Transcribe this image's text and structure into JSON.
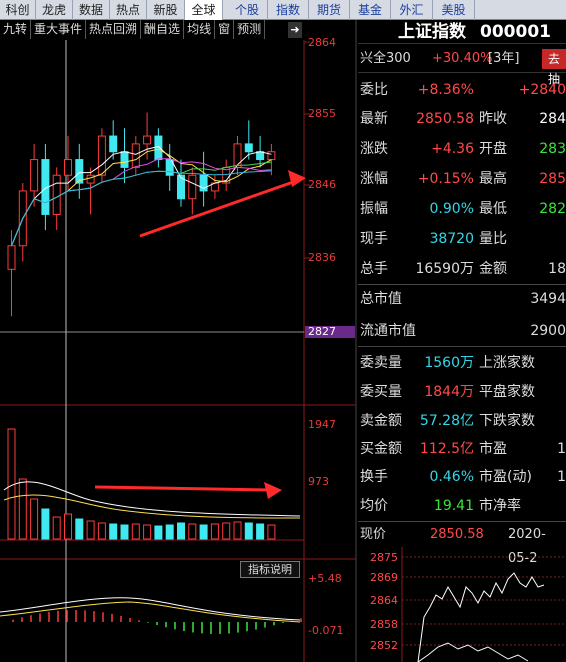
{
  "topnav": [
    "科创",
    "龙虎",
    "数据",
    "热点",
    "新股",
    "全球",
    "个股",
    "指数",
    "期货",
    "基金",
    "外汇",
    "美股"
  ],
  "toolbar": [
    "九转",
    "重大事件",
    "热点回溯",
    "酬自选",
    "均线",
    "窗",
    "预测"
  ],
  "kline": {
    "y_labels": [
      "2864",
      "2855",
      "2846",
      "2836",
      "2827"
    ],
    "ohlc": [
      [
        2835,
        2840,
        2829,
        2838
      ],
      [
        2838,
        2846,
        2836,
        2845
      ],
      [
        2845,
        2851,
        2843,
        2849
      ],
      [
        2849,
        2851,
        2840,
        2842
      ],
      [
        2842,
        2848,
        2840,
        2847
      ],
      [
        2847,
        2852,
        2845,
        2849
      ],
      [
        2849,
        2851,
        2844,
        2846
      ],
      [
        2846,
        2848,
        2842,
        2847
      ],
      [
        2847,
        2853,
        2846,
        2852
      ],
      [
        2852,
        2854,
        2849,
        2850
      ],
      [
        2850,
        2853,
        2846,
        2848
      ],
      [
        2848,
        2852,
        2847,
        2851
      ],
      [
        2851,
        2855,
        2849,
        2852
      ],
      [
        2852,
        2853,
        2848,
        2849
      ],
      [
        2849,
        2851,
        2845,
        2847
      ],
      [
        2847,
        2849,
        2843,
        2844
      ],
      [
        2844,
        2848,
        2842,
        2847
      ],
      [
        2847,
        2850,
        2843,
        2845
      ],
      [
        2845,
        2847,
        2844,
        2846
      ],
      [
        2846,
        2849,
        2845,
        2848
      ],
      [
        2848,
        2852,
        2847,
        2851
      ],
      [
        2851,
        2854,
        2849,
        2850
      ],
      [
        2850,
        2852,
        2848,
        2849
      ],
      [
        2849,
        2851,
        2847,
        2850
      ]
    ]
  },
  "volume": {
    "y_labels": [
      "1947",
      "973"
    ]
  },
  "indicator": {
    "button": "指标说明",
    "y_labels": [
      "+5.48",
      "-0.071"
    ]
  },
  "header": {
    "stock_name": "上证指数",
    "code": "000001"
  },
  "quote": {
    "compare_name": "兴全300",
    "compare_pct": "+30.40%",
    "compare_period": "[3年]",
    "go_button": "去",
    "rows": [
      {
        "l1": "委比",
        "v1": "+8.36%",
        "c1": "#ff4a4a",
        "l2": "",
        "v2": "+2840",
        "c2": "#ff4a4a"
      },
      {
        "l1": "最新",
        "v1": "2850.58",
        "c1": "#ff4a4a",
        "l2": "昨收",
        "v2": "284",
        "c2": "#fff"
      },
      {
        "l1": "涨跌",
        "v1": "+4.36",
        "c1": "#ff4a4a",
        "l2": "开盘",
        "v2": "283",
        "c2": "#3ee33e"
      },
      {
        "l1": "涨幅",
        "v1": "+0.15%",
        "c1": "#ff4a4a",
        "l2": "最高",
        "v2": "285",
        "c2": "#ff4a4a"
      },
      {
        "l1": "振幅",
        "v1": "0.90%",
        "c1": "#33d6e6",
        "l2": "最低",
        "v2": "282",
        "c2": "#3ee33e"
      },
      {
        "l1": "现手",
        "v1": "38720",
        "c1": "#33d6e6",
        "l2": "量比",
        "v2": "",
        "c2": "#fff"
      },
      {
        "l1": "总手",
        "v1": "16590万",
        "c1": "#ddd",
        "l2": "金额",
        "v2": "18",
        "c2": "#ddd"
      },
      {
        "l1": "总市值",
        "v1": "",
        "c1": "#ddd",
        "l2": "",
        "v2": "3494",
        "c2": "#ddd"
      },
      {
        "l1": "流通市值",
        "v1": "",
        "c1": "#ddd",
        "l2": "",
        "v2": "2900",
        "c2": "#ddd"
      },
      {
        "l1": "委卖量",
        "v1": "1560万",
        "c1": "#33d6e6",
        "l2": "上涨家数",
        "v2": "",
        "c2": "#ddd"
      },
      {
        "l1": "委买量",
        "v1": "1844万",
        "c1": "#ff4a4a",
        "l2": "平盘家数",
        "v2": "",
        "c2": "#ddd"
      },
      {
        "l1": "卖金额",
        "v1": "57.28亿",
        "c1": "#33d6e6",
        "l2": "下跌家数",
        "v2": "",
        "c2": "#ddd"
      },
      {
        "l1": "买金额",
        "v1": "112.5亿",
        "c1": "#ff4a4a",
        "l2": "市盈",
        "v2": "1",
        "c2": "#ddd"
      },
      {
        "l1": "换手",
        "v1": "0.46%",
        "c1": "#33d6e6",
        "l2": "市盈(动)",
        "v2": "1",
        "c2": "#ddd"
      },
      {
        "l1": "均价",
        "v1": "19.41",
        "c1": "#3ee33e",
        "l2": "市净率",
        "v2": "",
        "c2": "#ddd"
      }
    ]
  },
  "minichart": {
    "label": "现价",
    "price": "2850.58",
    "date": "2020-05-2",
    "y_labels": [
      "2875",
      "2869",
      "2864",
      "2858",
      "2852"
    ]
  },
  "colors": {
    "up": "#ff3b3b",
    "down": "#40e8f0",
    "grid": "#8b1a1a",
    "ma5": "#ffffff",
    "ma10": "#ffe14d",
    "ma20": "#e34fe3",
    "ma30": "#49d449",
    "ma60": "#33b5e5"
  }
}
